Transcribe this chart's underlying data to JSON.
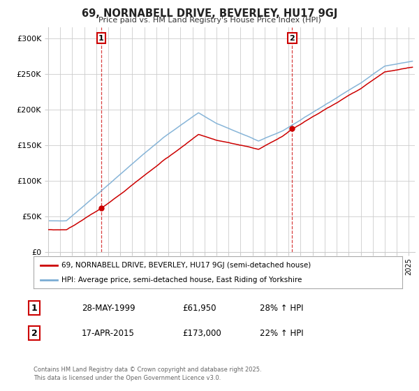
{
  "title": "69, NORNABELL DRIVE, BEVERLEY, HU17 9GJ",
  "subtitle": "Price paid vs. HM Land Registry's House Price Index (HPI)",
  "ylabel_ticks": [
    "£0",
    "£50K",
    "£100K",
    "£150K",
    "£200K",
    "£250K",
    "£300K"
  ],
  "ytick_values": [
    0,
    50000,
    100000,
    150000,
    200000,
    250000,
    300000
  ],
  "ylim": [
    0,
    315000
  ],
  "xlim_start": 1995.0,
  "xlim_end": 2025.5,
  "red_color": "#cc0000",
  "blue_color": "#7aadd4",
  "background_color": "#ffffff",
  "grid_color": "#cccccc",
  "sale1_year": 1999.41,
  "sale1_price": 61950,
  "sale2_year": 2015.29,
  "sale2_price": 173000,
  "legend_line1": "69, NORNABELL DRIVE, BEVERLEY, HU17 9GJ (semi-detached house)",
  "legend_line2": "HPI: Average price, semi-detached house, East Riding of Yorkshire",
  "annotation1_box": "1",
  "annotation1_date": "28-MAY-1999",
  "annotation1_price": "£61,950",
  "annotation1_hpi": "28% ↑ HPI",
  "annotation2_box": "2",
  "annotation2_date": "17-APR-2015",
  "annotation2_price": "£173,000",
  "annotation2_hpi": "22% ↑ HPI",
  "footer": "Contains HM Land Registry data © Crown copyright and database right 2025.\nThis data is licensed under the Open Government Licence v3.0."
}
